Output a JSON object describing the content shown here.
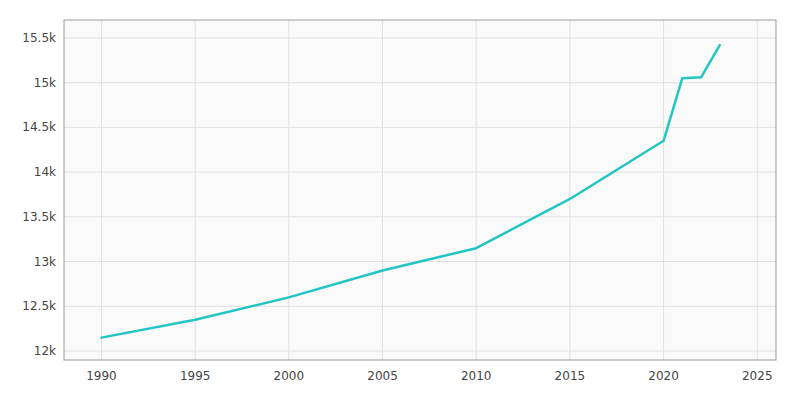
{
  "chart_data": {
    "type": "line",
    "x": [
      1990,
      1995,
      2000,
      2005,
      2010,
      2015,
      2020,
      2021,
      2022,
      2023
    ],
    "values": [
      12150,
      12350,
      12600,
      12900,
      13150,
      13700,
      14350,
      15050,
      15060,
      15420
    ],
    "color": "#22c4c4",
    "xlim": [
      1988,
      2026
    ],
    "ylim": [
      11900,
      15700
    ],
    "xticks": [
      1990,
      1995,
      2000,
      2005,
      2010,
      2015,
      2020,
      2025
    ],
    "yticks": [
      {
        "value": 12000,
        "label": "12k"
      },
      {
        "value": 12500,
        "label": "12.5k"
      },
      {
        "value": 13000,
        "label": "13k"
      },
      {
        "value": 13500,
        "label": "13.5k"
      },
      {
        "value": 14000,
        "label": "14k"
      },
      {
        "value": 14500,
        "label": "14.5k"
      },
      {
        "value": 15000,
        "label": "15k"
      },
      {
        "value": 15500,
        "label": "15.5k"
      }
    ],
    "grid": true
  }
}
